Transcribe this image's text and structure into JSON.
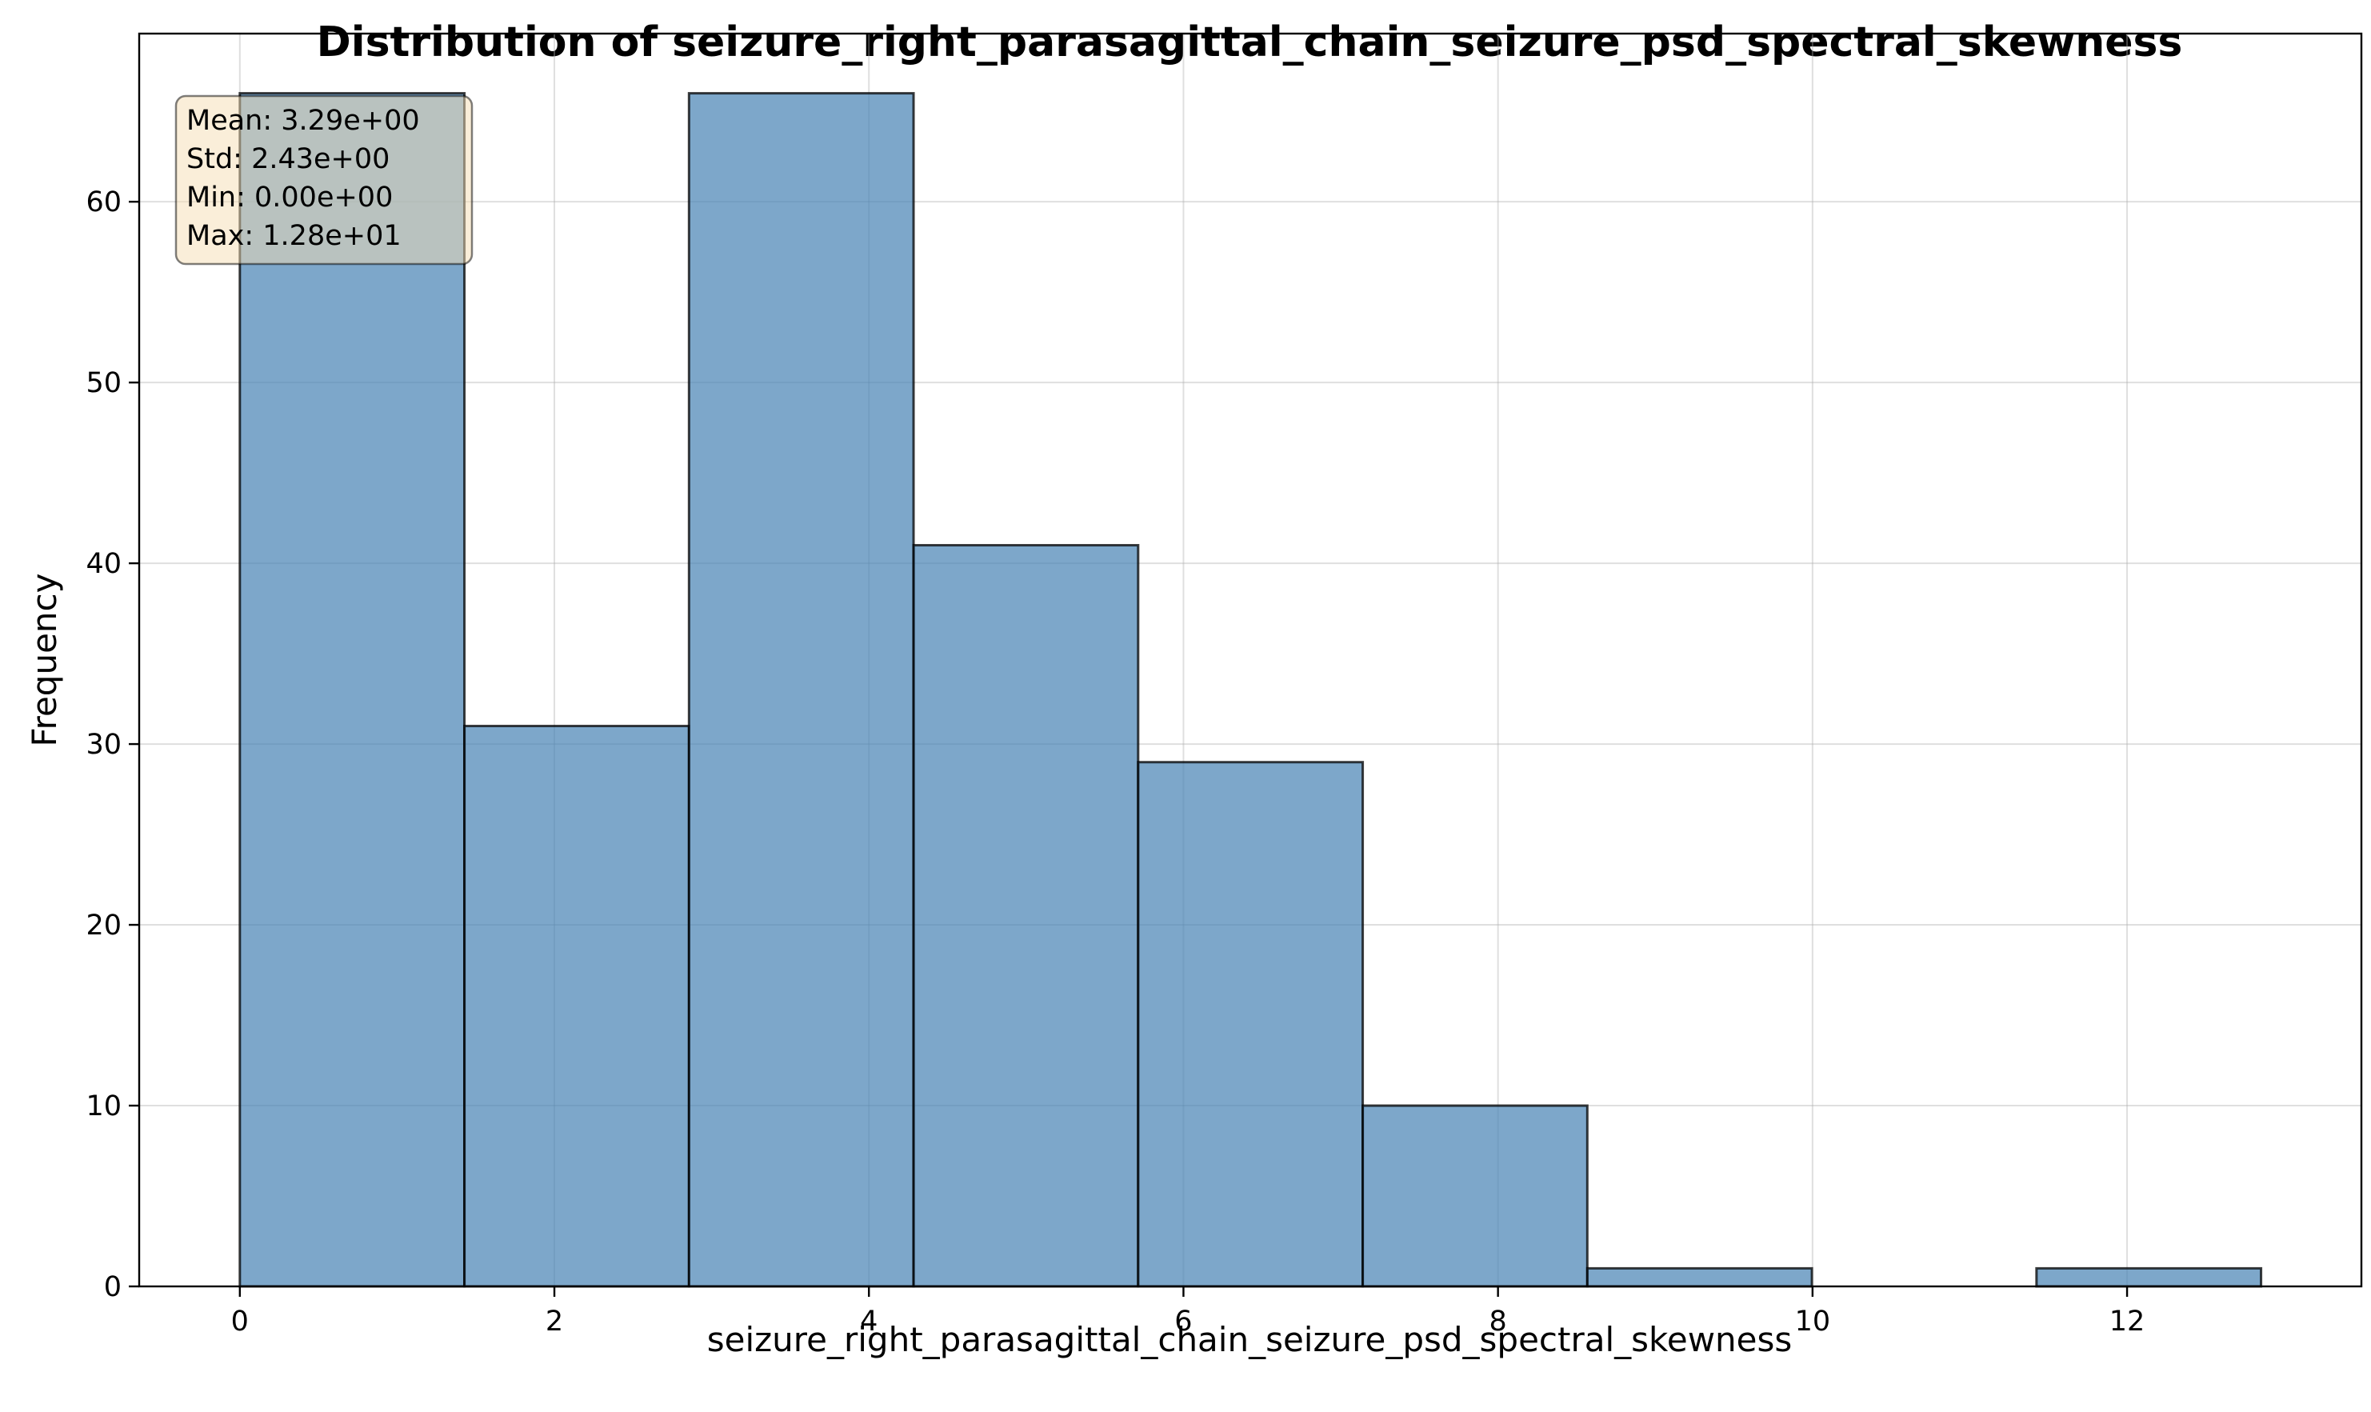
{
  "chart_data": {
    "type": "bar",
    "subtype": "histogram",
    "title": "Distribution of seizure_right_parasagittal_chain_seizure_psd_spectral_skewness",
    "xlabel": "seizure_right_parasagittal_chain_seizure_psd_spectral_skewness",
    "ylabel": "Frequency",
    "bin_edges": [
      0.0,
      1.428,
      2.856,
      4.284,
      5.712,
      7.14,
      8.568,
      9.996,
      11.424,
      12.852
    ],
    "values": [
      66,
      31,
      66,
      41,
      29,
      10,
      1,
      0,
      1
    ],
    "xlim": [
      -0.64,
      13.49
    ],
    "ylim": [
      0,
      69.3
    ],
    "x_ticks": [
      0,
      2,
      4,
      6,
      8,
      10,
      12
    ],
    "y_ticks": [
      0,
      10,
      20,
      30,
      40,
      50,
      60
    ],
    "grid": true,
    "bar_color": "#4682b4",
    "edge_color": "#000000",
    "stats_box": {
      "lines": [
        "Mean: 3.29e+00",
        "Std: 2.43e+00",
        "Min: 0.00e+00",
        "Max: 1.28e+01"
      ],
      "background": "#f5deb3",
      "position": "top-left"
    }
  }
}
